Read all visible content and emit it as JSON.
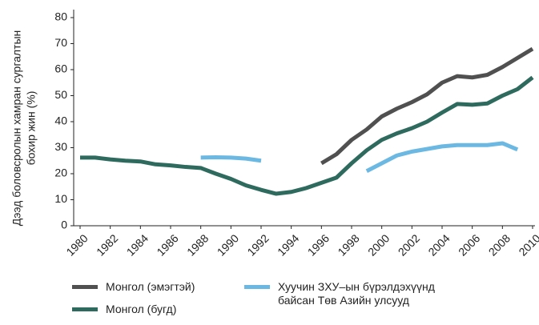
{
  "chart_data": {
    "type": "line",
    "y_label": [
      "Дээд боловсролын хамран сургалтын",
      "бохир жин (%)"
    ],
    "categories": [
      "1980",
      null,
      "1982",
      null,
      "1984",
      null,
      "1986",
      null,
      "1988",
      null,
      "1990",
      null,
      "1992",
      null,
      "1994",
      null,
      "1996",
      null,
      "1998",
      null,
      "2000",
      null,
      "2002",
      null,
      "2004",
      null,
      "2006",
      null,
      "2008",
      null,
      "2010"
    ],
    "series": [
      {
        "name": "Монгол (эмэгтэй)",
        "color": "#505050",
        "values": [
          null,
          null,
          null,
          null,
          null,
          null,
          null,
          null,
          null,
          null,
          null,
          null,
          null,
          null,
          null,
          null,
          24,
          27.5,
          33,
          37,
          42,
          45,
          47.5,
          50.5,
          55,
          57.5,
          57,
          58,
          61,
          64.5,
          68
        ]
      },
      {
        "name": "Монгол (бугд)",
        "color": "#2e6b5e",
        "values": [
          26.2,
          26.2,
          25.5,
          25,
          24.7,
          23.6,
          23.2,
          22.6,
          22.2,
          20,
          18,
          15.5,
          13.8,
          12.3,
          13,
          14.5,
          16.5,
          18.5,
          24,
          29,
          33,
          35.5,
          37.5,
          40,
          43.5,
          46.8,
          46.5,
          47,
          50,
          52.5,
          57
        ]
      },
      {
        "name": "Хуучин ЗХУ–ын бүрэлдэхүүнд байсан Төв Азийн улсууд",
        "color": "#6bb8e3",
        "values": [
          null,
          null,
          null,
          null,
          null,
          null,
          null,
          null,
          26.2,
          26.3,
          26.2,
          25.8,
          25,
          null,
          null,
          null,
          null,
          null,
          null,
          21,
          24,
          27,
          28.5,
          29.5,
          30.5,
          31,
          31,
          31,
          31.7,
          29.3,
          null
        ]
      }
    ],
    "ylim": [
      0,
      80
    ],
    "yticks": [
      0,
      10,
      20,
      30,
      40,
      50,
      60,
      70,
      80
    ],
    "grid": false
  }
}
